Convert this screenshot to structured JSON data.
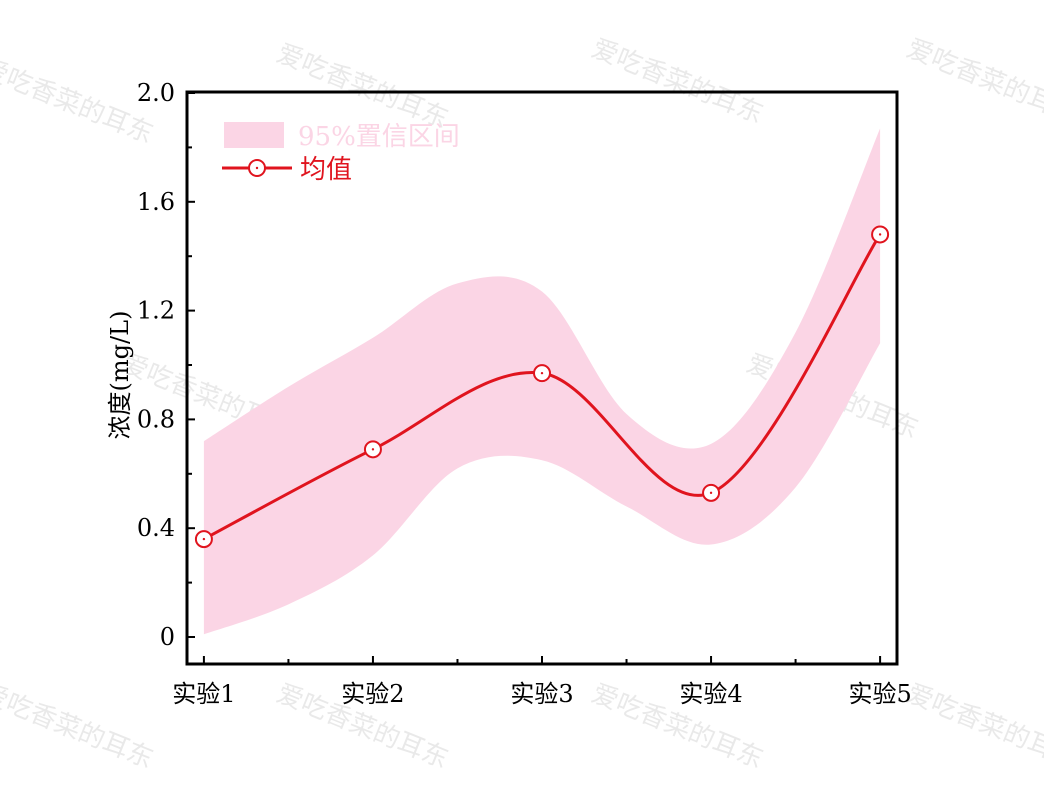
{
  "chart_data": {
    "type": "line",
    "title": "",
    "xlabel": "",
    "ylabel": "浓度(mg/L)",
    "categories": [
      "实验1",
      "实验2",
      "实验3",
      "实验4",
      "实验5"
    ],
    "ylim": [
      0,
      2.0
    ],
    "yticks": [
      "0",
      "0.4",
      "0.8",
      "1.2",
      "1.6",
      "2.0"
    ],
    "ytick_values": [
      0,
      0.4,
      0.8,
      1.2,
      1.6,
      2.0
    ],
    "grid": false,
    "legend_position": "top-left",
    "series": [
      {
        "name": "均值",
        "values": [
          0.36,
          0.69,
          0.97,
          0.53,
          1.48
        ],
        "color": "#e0141e"
      }
    ],
    "ci_band": {
      "name": "95%置信区间",
      "color": "#fbd5e5",
      "x": [
        1,
        1.5,
        2,
        2.5,
        3,
        3.5,
        4,
        4.5,
        5
      ],
      "upper": [
        0.72,
        0.92,
        1.1,
        1.3,
        1.27,
        0.82,
        0.71,
        1.12,
        1.87
      ],
      "lower": [
        0.01,
        0.12,
        0.3,
        0.62,
        0.65,
        0.48,
        0.34,
        0.55,
        1.08
      ]
    }
  },
  "watermark": {
    "text": "爱吃香菜的耳东",
    "color": "#d8d8d8"
  }
}
